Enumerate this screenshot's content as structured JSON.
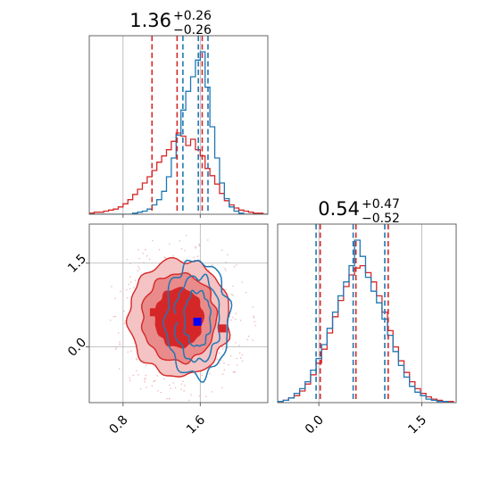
{
  "colors": {
    "red": "#d62728",
    "blue": "#1f77b4",
    "red_fill_dark": "#d62728",
    "red_fill_mid": "#e98b8b",
    "red_fill_light": "#f4c3c3",
    "grid": "#b0b0b0",
    "truth_marker": "#0000ff"
  },
  "chart_data": [
    {
      "type": "histogram",
      "panel": "marginal-param-1",
      "title": {
        "value": "1.36",
        "upper": "+0.26",
        "lower": "−0.26"
      },
      "xlim": [
        0.45,
        2.3
      ],
      "bins": [
        0.45,
        0.5,
        0.55,
        0.6,
        0.65,
        0.7,
        0.75,
        0.8,
        0.85,
        0.9,
        0.95,
        1.0,
        1.05,
        1.1,
        1.15,
        1.2,
        1.25,
        1.3,
        1.35,
        1.4,
        1.45,
        1.5,
        1.55,
        1.6,
        1.65,
        1.7,
        1.75,
        1.8,
        1.85,
        1.9,
        1.95,
        2.0,
        2.05,
        2.1,
        2.15,
        2.2,
        2.25,
        2.3
      ],
      "series": [
        {
          "color": "red",
          "values": [
            1,
            2,
            2,
            3,
            4,
            5,
            7,
            10,
            14,
            19,
            24,
            30,
            36,
            42,
            50,
            56,
            62,
            70,
            78,
            75,
            66,
            72,
            62,
            56,
            44,
            37,
            29,
            20,
            13,
            9,
            6,
            4,
            3,
            2,
            1,
            1,
            0
          ]
        },
        {
          "color": "blue",
          "values": [
            0,
            0,
            0,
            0,
            0,
            0,
            0,
            0,
            0,
            1,
            2,
            3,
            5,
            9,
            14,
            22,
            36,
            54,
            76,
            100,
            118,
            132,
            148,
            156,
            122,
            84,
            54,
            30,
            15,
            7,
            3,
            1,
            0,
            0,
            0,
            0,
            0
          ]
        }
      ],
      "quantiles": [
        {
          "color": "red",
          "values": [
            1.1,
            1.36,
            1.62
          ]
        },
        {
          "color": "blue",
          "values": [
            1.42,
            1.58,
            1.68
          ]
        }
      ]
    },
    {
      "type": "histogram",
      "panel": "marginal-param-2",
      "title": {
        "value": "0.54",
        "upper": "+0.47",
        "lower": "−0.52"
      },
      "xlim": [
        -0.6,
        2.0
      ],
      "xticks": [
        0.0,
        1.5
      ],
      "xtick_labels": [
        "0.0",
        "1.5"
      ],
      "bins": [
        -0.6,
        -0.52,
        -0.44,
        -0.36,
        -0.28,
        -0.2,
        -0.12,
        -0.04,
        0.04,
        0.12,
        0.2,
        0.28,
        0.36,
        0.44,
        0.52,
        0.6,
        0.68,
        0.76,
        0.84,
        0.92,
        1.0,
        1.08,
        1.16,
        1.24,
        1.32,
        1.4,
        1.48,
        1.56,
        1.64,
        1.72,
        1.8,
        1.88,
        1.96
      ],
      "series": [
        {
          "color": "red",
          "values": [
            1,
            2,
            4,
            6,
            10,
            16,
            24,
            34,
            46,
            60,
            74,
            88,
            100,
            110,
            116,
            118,
            112,
            104,
            92,
            78,
            62,
            48,
            36,
            26,
            18,
            12,
            8,
            5,
            3,
            2,
            1,
            1
          ]
        },
        {
          "color": "blue",
          "values": [
            1,
            2,
            4,
            8,
            12,
            18,
            28,
            38,
            50,
            64,
            78,
            92,
            104,
            118,
            140,
            126,
            108,
            96,
            86,
            72,
            58,
            44,
            32,
            22,
            14,
            9,
            6,
            3,
            2,
            1,
            1,
            0
          ]
        }
      ],
      "quantiles": [
        {
          "color": "red",
          "values": [
            0.02,
            0.54,
            1.01
          ]
        },
        {
          "color": "blue",
          "values": [
            -0.04,
            0.5,
            0.96
          ]
        }
      ]
    },
    {
      "type": "contour",
      "panel": "joint-param-1-param-2",
      "xlim": [
        0.45,
        2.3
      ],
      "ylim": [
        -1.0,
        2.2
      ],
      "xticks": [
        0.8,
        1.6
      ],
      "xtick_labels": [
        "0.8",
        "1.6"
      ],
      "yticks": [
        0.0,
        1.5
      ],
      "ytick_labels": [
        "0.0",
        "1.5"
      ],
      "series": [
        {
          "color": "red",
          "filled": true,
          "center": [
            1.38,
            0.52
          ],
          "levels_sigma": [
            [
              0.95,
              0.95
            ],
            [
              0.7,
              0.72
            ],
            [
              0.45,
              0.48
            ]
          ]
        },
        {
          "color": "blue",
          "filled": false,
          "center": [
            1.57,
            0.5
          ],
          "levels_sigma": [
            [
              0.6,
              1.15
            ],
            [
              0.42,
              0.85
            ],
            [
              0.25,
              0.55
            ]
          ]
        }
      ],
      "markers": [
        {
          "color": "red",
          "x": 1.12,
          "y": 0.62
        },
        {
          "color": "red",
          "x": 1.35,
          "y": 0.52
        },
        {
          "color": "truth_marker",
          "x": 1.57,
          "y": 0.45
        },
        {
          "color": "red",
          "x": 1.83,
          "y": 0.33
        }
      ]
    }
  ]
}
